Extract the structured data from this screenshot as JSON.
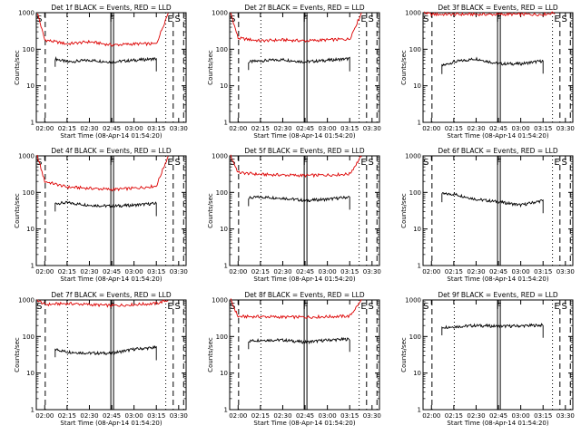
{
  "figure": {
    "start_time_label": "Start Time (08-Apr-14 01:54:20)",
    "ylabel": "Counts/sec",
    "colors": {
      "events": "#000000",
      "lld": "#dd0000",
      "frame": "#000000"
    }
  },
  "chart_data": [
    {
      "type": "line",
      "title": "Det 1f BLACK = Events, RED = LLD",
      "xlabel": "Start Time (08-Apr-14 01:54:20)",
      "ylabel": "Counts/sec",
      "ylim": [
        1,
        1000
      ],
      "yscale": "log",
      "xlim": [
        "01:54:20",
        "03:35:00"
      ],
      "x_ticks": [
        "02:00",
        "02:15",
        "02:30",
        "02:45",
        "03:00",
        "03:15",
        "03:30"
      ],
      "y_ticks": [
        "1",
        "10",
        "100",
        "1000"
      ],
      "markers": [
        "S",
        "F",
        "E",
        "S"
      ],
      "series": [
        {
          "name": "BLACK = Events",
          "color": "black",
          "x": [
            "02:07",
            "02:15",
            "02:30",
            "02:45",
            "03:00",
            "03:15"
          ],
          "values": [
            55,
            45,
            50,
            45,
            50,
            55
          ]
        },
        {
          "name": "RED = LLD",
          "color": "red",
          "x": [
            "01:55",
            "02:00",
            "02:15",
            "02:30",
            "02:45",
            "03:00",
            "03:15",
            "03:23"
          ],
          "values": [
            1000,
            180,
            140,
            160,
            130,
            140,
            140,
            1000
          ]
        }
      ]
    },
    {
      "type": "line",
      "title": "Det 2f BLACK = Events, RED = LLD",
      "xlabel": "Start Time (08-Apr-14 01:54:20)",
      "ylabel": "Counts/sec",
      "ylim": [
        1,
        1000
      ],
      "yscale": "log",
      "xlim": [
        "01:54:20",
        "03:35:00"
      ],
      "x_ticks": [
        "02:00",
        "02:15",
        "02:30",
        "02:45",
        "03:00",
        "03:15",
        "03:30"
      ],
      "y_ticks": [
        "1",
        "10",
        "100",
        "1000"
      ],
      "markers": [
        "S",
        "F",
        "E",
        "S"
      ],
      "series": [
        {
          "name": "BLACK = Events",
          "color": "black",
          "x": [
            "02:07",
            "02:15",
            "02:30",
            "02:45",
            "03:00",
            "03:15"
          ],
          "values": [
            45,
            48,
            52,
            45,
            50,
            55
          ]
        },
        {
          "name": "RED = LLD",
          "color": "red",
          "x": [
            "01:55",
            "02:00",
            "02:15",
            "02:30",
            "02:45",
            "03:00",
            "03:15",
            "03:23"
          ],
          "values": [
            1000,
            200,
            170,
            180,
            170,
            180,
            190,
            1000
          ]
        }
      ]
    },
    {
      "type": "line",
      "title": "Det 3f BLACK = Events, RED = LLD",
      "xlabel": "Start Time (08-Apr-14 01:54:20)",
      "ylabel": "Counts/sec",
      "ylim": [
        1,
        1000
      ],
      "yscale": "log",
      "xlim": [
        "01:54:20",
        "03:35:00"
      ],
      "x_ticks": [
        "02:00",
        "02:15",
        "02:30",
        "02:45",
        "03:00",
        "03:15",
        "03:30"
      ],
      "y_ticks": [
        "1",
        "10",
        "100",
        "1000"
      ],
      "markers": [
        "S",
        "F",
        "E",
        "S"
      ],
      "series": [
        {
          "name": "BLACK = Events",
          "color": "black",
          "x": [
            "02:07",
            "02:15",
            "02:30",
            "02:45",
            "03:00",
            "03:15"
          ],
          "values": [
            35,
            45,
            55,
            40,
            40,
            48
          ]
        },
        {
          "name": "RED = LLD",
          "color": "red",
          "x": [
            "01:55",
            "02:00",
            "02:15",
            "02:30",
            "02:45",
            "03:00",
            "03:15",
            "03:23"
          ],
          "values": [
            1000,
            900,
            900,
            900,
            900,
            900,
            900,
            1000
          ]
        }
      ]
    },
    {
      "type": "line",
      "title": "Det 4f BLACK = Events, RED = LLD",
      "xlabel": "Start Time (08-Apr-14 01:54:20)",
      "ylabel": "Counts/sec",
      "ylim": [
        1,
        1000
      ],
      "yscale": "log",
      "xlim": [
        "01:54:20",
        "03:35:00"
      ],
      "x_ticks": [
        "02:00",
        "02:15",
        "02:30",
        "02:45",
        "03:00",
        "03:15",
        "03:30"
      ],
      "y_ticks": [
        "1",
        "10",
        "100",
        "1000"
      ],
      "markers": [
        "S",
        "F",
        "E",
        "S"
      ],
      "series": [
        {
          "name": "BLACK = Events",
          "color": "black",
          "x": [
            "02:07",
            "02:15",
            "02:30",
            "02:45",
            "03:00",
            "03:15"
          ],
          "values": [
            50,
            52,
            45,
            42,
            45,
            50
          ]
        },
        {
          "name": "RED = LLD",
          "color": "red",
          "x": [
            "01:55",
            "02:00",
            "02:15",
            "02:30",
            "02:45",
            "03:00",
            "03:15",
            "03:23"
          ],
          "values": [
            1000,
            200,
            140,
            130,
            120,
            130,
            150,
            1000
          ]
        }
      ]
    },
    {
      "type": "line",
      "title": "Det 5f BLACK = Events, RED = LLD",
      "xlabel": "Start Time (08-Apr-14 01:54:20)",
      "ylabel": "Counts/sec",
      "ylim": [
        1,
        1000
      ],
      "yscale": "log",
      "xlim": [
        "01:54:20",
        "03:35:00"
      ],
      "x_ticks": [
        "02:00",
        "02:15",
        "02:30",
        "02:45",
        "03:00",
        "03:15",
        "03:30"
      ],
      "y_ticks": [
        "1",
        "10",
        "100",
        "1000"
      ],
      "markers": [
        "S",
        "F",
        "E",
        "S"
      ],
      "series": [
        {
          "name": "BLACK = Events",
          "color": "black",
          "x": [
            "02:07",
            "02:15",
            "02:30",
            "02:45",
            "03:00",
            "03:15"
          ],
          "values": [
            70,
            75,
            70,
            60,
            65,
            75
          ]
        },
        {
          "name": "RED = LLD",
          "color": "red",
          "x": [
            "01:55",
            "02:00",
            "02:15",
            "02:30",
            "02:45",
            "03:00",
            "03:15",
            "03:23"
          ],
          "values": [
            1000,
            350,
            310,
            300,
            290,
            300,
            320,
            1000
          ]
        }
      ]
    },
    {
      "type": "line",
      "title": "Det 6f BLACK = Events, RED = LLD",
      "xlabel": "Start Time (08-Apr-14 01:54:20)",
      "ylabel": "Counts/sec",
      "ylim": [
        1,
        1000
      ],
      "yscale": "log",
      "xlim": [
        "01:54:20",
        "03:35:00"
      ],
      "x_ticks": [
        "02:00",
        "02:15",
        "02:30",
        "02:45",
        "03:00",
        "03:15",
        "03:30"
      ],
      "y_ticks": [
        "1",
        "10",
        "100",
        "1000"
      ],
      "markers": [
        "S",
        "F",
        "E",
        "S"
      ],
      "series": [
        {
          "name": "BLACK = Events",
          "color": "black",
          "x": [
            "02:07",
            "02:15",
            "02:30",
            "02:45",
            "03:00",
            "03:15"
          ],
          "values": [
            90,
            90,
            65,
            55,
            45,
            60
          ]
        }
      ]
    },
    {
      "type": "line",
      "title": "Det 7f BLACK = Events, RED = LLD",
      "xlabel": "Start Time (08-Apr-14 01:54:20)",
      "ylabel": "Counts/sec",
      "ylim": [
        1,
        1000
      ],
      "yscale": "log",
      "xlim": [
        "01:54:20",
        "03:35:00"
      ],
      "x_ticks": [
        "02:00",
        "02:15",
        "02:30",
        "02:45",
        "03:00",
        "03:15",
        "03:30"
      ],
      "y_ticks": [
        "1",
        "10",
        "100",
        "1000"
      ],
      "markers": [
        "S",
        "F",
        "E",
        "S"
      ],
      "series": [
        {
          "name": "BLACK = Events",
          "color": "black",
          "x": [
            "02:07",
            "02:15",
            "02:30",
            "02:45",
            "03:00",
            "03:15"
          ],
          "values": [
            45,
            38,
            35,
            35,
            45,
            50
          ]
        },
        {
          "name": "RED = LLD",
          "color": "red",
          "x": [
            "01:55",
            "02:00",
            "02:15",
            "02:30",
            "02:45",
            "03:00",
            "03:15",
            "03:23"
          ],
          "values": [
            1000,
            750,
            800,
            750,
            700,
            750,
            800,
            1000
          ]
        }
      ]
    },
    {
      "type": "line",
      "title": "Det 8f BLACK = Events, RED = LLD",
      "xlabel": "Start Time (08-Apr-14 01:54:20)",
      "ylabel": "Counts/sec",
      "ylim": [
        1,
        1000
      ],
      "yscale": "log",
      "xlim": [
        "01:54:20",
        "03:35:00"
      ],
      "x_ticks": [
        "02:00",
        "02:15",
        "02:30",
        "02:45",
        "03:00",
        "03:15",
        "03:30"
      ],
      "y_ticks": [
        "1",
        "10",
        "100",
        "1000"
      ],
      "markers": [
        "S",
        "F",
        "E",
        "S"
      ],
      "series": [
        {
          "name": "BLACK = Events",
          "color": "black",
          "x": [
            "02:07",
            "02:15",
            "02:30",
            "02:45",
            "03:00",
            "03:15"
          ],
          "values": [
            75,
            80,
            80,
            70,
            80,
            85
          ]
        },
        {
          "name": "RED = LLD",
          "color": "red",
          "x": [
            "01:55",
            "02:00",
            "02:15",
            "02:30",
            "02:45",
            "03:00",
            "03:15",
            "03:23"
          ],
          "values": [
            1000,
            350,
            350,
            340,
            340,
            350,
            360,
            1000
          ]
        }
      ]
    },
    {
      "type": "line",
      "title": "Det 9f BLACK = Events, RED = LLD",
      "xlabel": "Start Time (08-Apr-14 01:54:20)",
      "ylabel": "Counts/sec",
      "ylim": [
        1,
        1000
      ],
      "yscale": "log",
      "xlim": [
        "01:54:20",
        "03:35:00"
      ],
      "x_ticks": [
        "02:00",
        "02:15",
        "02:30",
        "02:45",
        "03:00",
        "03:15",
        "03:30"
      ],
      "y_ticks": [
        "1",
        "10",
        "100",
        "1000"
      ],
      "markers": [
        "S",
        "F",
        "E",
        "S"
      ],
      "series": [
        {
          "name": "BLACK = Events",
          "color": "black",
          "x": [
            "02:07",
            "02:15",
            "02:30",
            "02:45",
            "03:00",
            "03:15"
          ],
          "values": [
            180,
            185,
            200,
            190,
            195,
            205
          ]
        }
      ]
    }
  ]
}
